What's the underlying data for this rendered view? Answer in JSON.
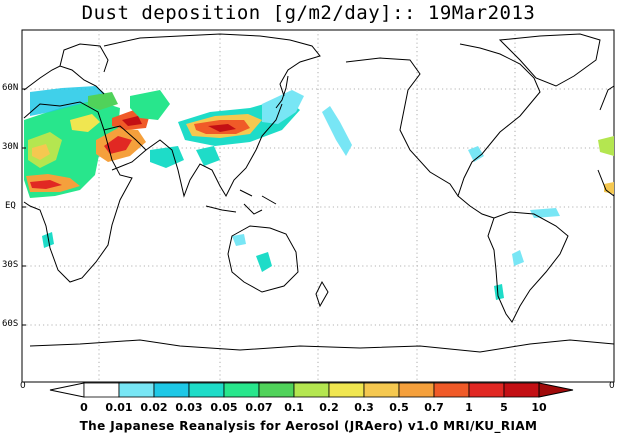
{
  "title": "Dust deposition [g/m2/day]:: 19Mar2013",
  "footer": "The Japanese Reanalysis for Aerosol (JRAero) v1.0 MRI/KU_RIAM",
  "latitude_labels": [
    "60N",
    "30N",
    "EQ",
    "30S",
    "60S"
  ],
  "colorbar": {
    "edge_left_label": "0",
    "edge_right_label": "0",
    "tick_labels": [
      "0",
      "0.01",
      "0.02",
      "0.03",
      "0.05",
      "0.07",
      "0.1",
      "0.2",
      "0.3",
      "0.5",
      "0.7",
      "1",
      "5",
      "10"
    ],
    "colors": [
      "#ffffff",
      "#78e6f5",
      "#1ec8e6",
      "#1edcc8",
      "#28e68c",
      "#50d25a",
      "#b4e650",
      "#f0e650",
      "#f5c850",
      "#f5a03c",
      "#f05a28",
      "#e12823",
      "#c30f14",
      "#a00a0a"
    ]
  },
  "map": {
    "projection": "equirectangular, Pacific-centred",
    "coastline_color": "#000000",
    "gridline_color": "#9a9a9a",
    "dust_regions": [
      {
        "region": "Sahara / North Africa",
        "level": "0.1–5"
      },
      {
        "region": "Arabian Peninsula",
        "level": "0.5–5"
      },
      {
        "region": "Taklamakan / Gobi / North China",
        "level": "0.5–5"
      },
      {
        "region": "East Asia & NW Pacific outflow",
        "level": "0.01–0.3"
      },
      {
        "region": "Sahel / West Africa",
        "level": "0.3–1"
      },
      {
        "region": "Australian interior",
        "level": "0.01–0.07"
      },
      {
        "region": "South America (Patagonia, Andes)",
        "level": "0.01–0.05"
      }
    ]
  }
}
